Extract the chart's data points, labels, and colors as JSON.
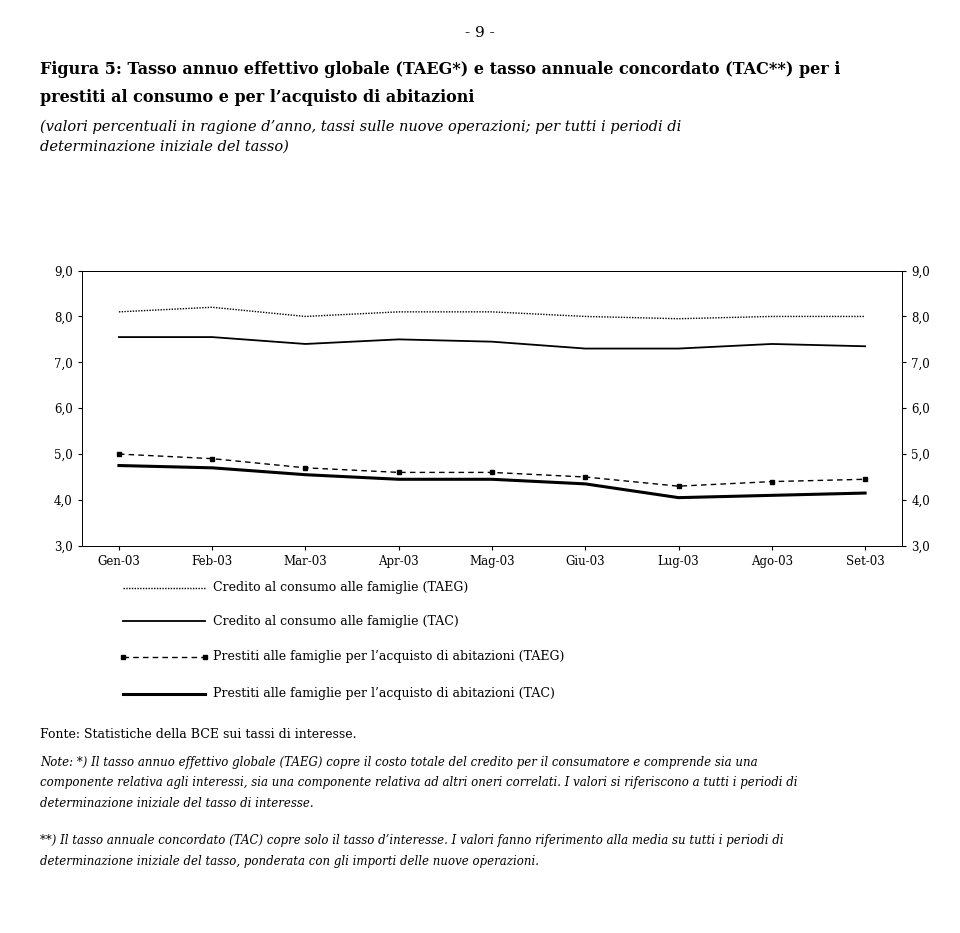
{
  "x_labels": [
    "Gen-03",
    "Feb-03",
    "Mar-03",
    "Apr-03",
    "Mag-03",
    "Giu-03",
    "Lug-03",
    "Ago-03",
    "Set-03"
  ],
  "credito_TAEG": [
    8.1,
    8.2,
    8.0,
    8.1,
    8.1,
    8.0,
    7.95,
    8.0,
    8.0
  ],
  "credito_TAC": [
    7.55,
    7.55,
    7.4,
    7.5,
    7.45,
    7.3,
    7.3,
    7.4,
    7.35
  ],
  "prestiti_TAEG": [
    5.0,
    4.9,
    4.7,
    4.6,
    4.6,
    4.5,
    4.3,
    4.4,
    4.45
  ],
  "prestiti_TAC": [
    4.75,
    4.7,
    4.55,
    4.45,
    4.45,
    4.35,
    4.05,
    4.1,
    4.15
  ],
  "ylim": [
    3.0,
    9.0
  ],
  "yticks": [
    3.0,
    4.0,
    5.0,
    6.0,
    7.0,
    8.0,
    9.0
  ],
  "ytick_labels": [
    "3,0",
    "4,0",
    "5,0",
    "6,0",
    "7,0",
    "8,0",
    "9,0"
  ],
  "page_number": "- 9 -",
  "title_line1": "Figura 5: Tasso annuo effettivo globale (TAEG*) e tasso annuale concordato (TAC**) per i",
  "title_line2": "prestiti al consumo e per l’acquisto di abitazioni",
  "subtitle_line1": "(valori percentuali in ragione d’anno, tassi sulle nuove operazioni; per tutti i periodi di",
  "subtitle_line2": "determinazione iniziale del tasso)",
  "legend1": "Credito al consumo alle famiglie (TAEG)",
  "legend2": "Credito al consumo alle famiglie (TAC)",
  "legend3": "Prestiti alle famiglie per l’acquisto di abitazioni (TAEG)",
  "legend4": "Prestiti alle famiglie per l’acquisto di abitazioni (TAC)",
  "fonte": "Fonte: Statistiche della BCE sui tassi di interesse.",
  "note1": "Note: *) Il tasso annuo effettivo globale (TAEG) copre il costo totale del credito per il consumatore e comprende sia una componente relativa agli interessi, sia una componente relativa ad altri oneri correlati. I valori si riferiscono a tutti i periodi di determinazione iniziale del tasso di interesse.",
  "note2": "**) Il tasso annuale concordato (TAC) copre solo il tasso d’interesse. I valori fanno riferimento alla media su tutti i periodi di determinazione iniziale del tasso, ponderata con gli importi delle nuove operazioni.",
  "bg_color": "#ffffff",
  "line_color": "#000000"
}
